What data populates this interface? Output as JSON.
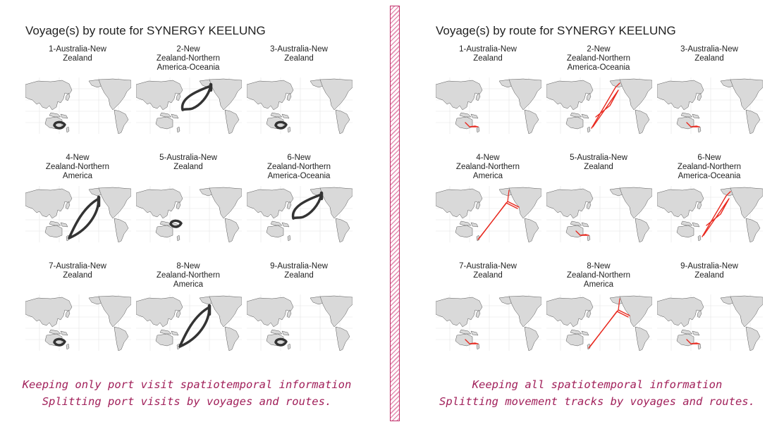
{
  "colors": {
    "accent": "#a1205a",
    "divider": "#c0306a",
    "land": "#d9d9d9",
    "track_left": "#333333",
    "track_right": "#e8281e"
  },
  "left": {
    "title": "Voyage(s) by route for SYNERGY KEELUNG",
    "caption_line1": "Keeping only port visit spatiotemporal information",
    "caption_line2": "Splitting port visits by voyages and routes.",
    "panels": [
      {
        "label": "1-Australia-New\nZealand",
        "route": "aunz",
        "variant": 0
      },
      {
        "label": "2-New\nZealand-Northern\nAmerica-Oceania",
        "route": "nzna",
        "variant": 1
      },
      {
        "label": "3-Australia-New\nZealand",
        "route": "aunz",
        "variant": 0
      },
      {
        "label": "4-New\nZealand-Northern\nAmerica",
        "route": "nzna",
        "variant": 2
      },
      {
        "label": "5-Australia-New\nZealand",
        "route": "aunz",
        "variant": 1
      },
      {
        "label": "6-New\nZealand-Northern\nAmerica-Oceania",
        "route": "nzna",
        "variant": 1
      },
      {
        "label": "7-Australia-New\nZealand",
        "route": "aunz",
        "variant": 0
      },
      {
        "label": "8-New\nZealand-Northern\nAmerica",
        "route": "nzna",
        "variant": 2
      },
      {
        "label": "9-Australia-New\nZealand",
        "route": "aunz",
        "variant": 0
      }
    ]
  },
  "right": {
    "title": "Voyage(s) by route for SYNERGY KEELUNG",
    "caption_line1": "Keeping all spatiotemporal information",
    "caption_line2": "Splitting movement tracks by voyages and routes.",
    "panels": [
      {
        "label": "1-Australia-New\nZealand",
        "route": "aunz",
        "variant": 0
      },
      {
        "label": "2-New\nZealand-Northern\nAmerica-Oceania",
        "route": "nzna",
        "variant": 1
      },
      {
        "label": "3-Australia-New\nZealand",
        "route": "aunz",
        "variant": 0
      },
      {
        "label": "4-New\nZealand-Northern\nAmerica",
        "route": "nzna",
        "variant": 2
      },
      {
        "label": "5-Australia-New\nZealand",
        "route": "aunz",
        "variant": 0
      },
      {
        "label": "6-New\nZealand-Northern\nAmerica-Oceania",
        "route": "nzna",
        "variant": 1
      },
      {
        "label": "7-Australia-New\nZealand",
        "route": "aunz",
        "variant": 0
      },
      {
        "label": "8-New\nZealand-Northern\nAmerica",
        "route": "nzna",
        "variant": 2
      },
      {
        "label": "9-Australia-New\nZealand",
        "route": "aunz",
        "variant": 0
      }
    ]
  }
}
